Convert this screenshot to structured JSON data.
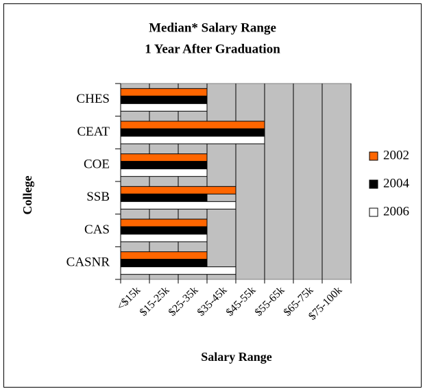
{
  "chart_data": {
    "type": "hbar",
    "title": [
      "Median* Salary Range",
      "1 Year After Graduation"
    ],
    "x_label": "Salary Range",
    "y_label": "College",
    "categories": [
      "CHES",
      "CEAT",
      "COE",
      "SSB",
      "CAS",
      "CASNR"
    ],
    "series": [
      {
        "name": "2002",
        "color": "#ff6600",
        "values": [
          3,
          5,
          3,
          4,
          3,
          3
        ]
      },
      {
        "name": "2004",
        "color": "#000000",
        "values": [
          3,
          5,
          3,
          3,
          3,
          3
        ]
      },
      {
        "name": "2006",
        "color": "#ffffff",
        "values": [
          3,
          5,
          3,
          4,
          3,
          4
        ]
      }
    ],
    "xlim": [
      0,
      8
    ],
    "xticks": [
      0,
      1,
      2,
      3,
      4,
      5,
      6,
      7,
      8
    ],
    "xtick_labels": [
      "<$15k",
      "$15-25k",
      "$25-35k",
      "$35-45k",
      "$45-55k",
      "$55-65k",
      "$65-75k",
      "$75-100k"
    ],
    "grid": true,
    "plot_color": "#c0c0c0",
    "legend": "right"
  }
}
